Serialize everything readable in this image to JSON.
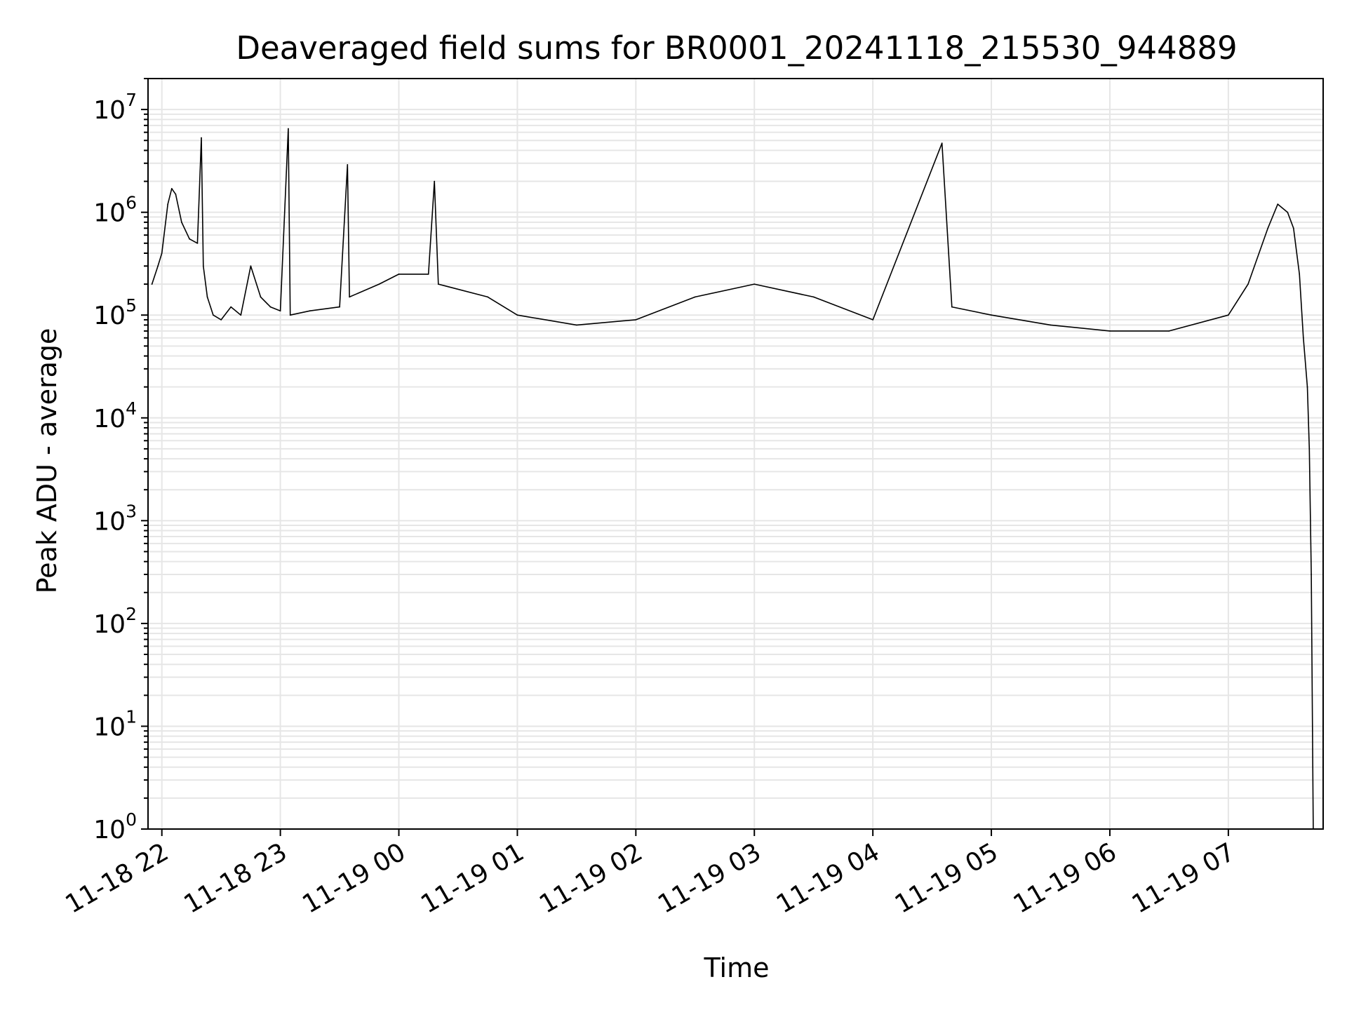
{
  "chart_data": {
    "type": "line",
    "title": "Deaveraged field sums for BR0001_20241118_215530_944889",
    "xlabel": "Time",
    "ylabel": "Peak ADU - average",
    "yscale": "log",
    "ylim": [
      1,
      20000000
    ],
    "xlim": [
      "2024-11-18 21:53",
      "2024-11-19 07:48"
    ],
    "grid": "on (major and minor)",
    "line_color": "#000000",
    "grid_color": "#e6e6e6",
    "x_ticks": [
      "11-18 22",
      "11-18 23",
      "11-19 00",
      "11-19 01",
      "11-19 02",
      "11-19 03",
      "11-19 04",
      "11-19 05",
      "11-19 06",
      "11-19 07"
    ],
    "x_tick_times": [
      "2024-11-18 22:00",
      "2024-11-18 23:00",
      "2024-11-19 00:00",
      "2024-11-19 01:00",
      "2024-11-19 02:00",
      "2024-11-19 03:00",
      "2024-11-19 04:00",
      "2024-11-19 05:00",
      "2024-11-19 06:00",
      "2024-11-19 07:00"
    ],
    "y_ticks": [
      {
        "base": "10",
        "exp": "0",
        "value": 1
      },
      {
        "base": "10",
        "exp": "1",
        "value": 10
      },
      {
        "base": "10",
        "exp": "2",
        "value": 100
      },
      {
        "base": "10",
        "exp": "3",
        "value": 1000
      },
      {
        "base": "10",
        "exp": "4",
        "value": 10000
      },
      {
        "base": "10",
        "exp": "5",
        "value": 100000
      },
      {
        "base": "10",
        "exp": "6",
        "value": 1000000
      },
      {
        "base": "10",
        "exp": "7",
        "value": 10000000
      }
    ],
    "series": [
      {
        "points": [
          [
            "2024-11-18 21:55",
            200000
          ],
          [
            "2024-11-18 21:58",
            300000
          ],
          [
            "2024-11-18 22:00",
            400000
          ],
          [
            "2024-11-18 22:03",
            1200000
          ],
          [
            "2024-11-18 22:05",
            1700000
          ],
          [
            "2024-11-18 22:07",
            1500000
          ],
          [
            "2024-11-18 22:10",
            800000
          ],
          [
            "2024-11-18 22:14",
            550000
          ],
          [
            "2024-11-18 22:18",
            500000
          ],
          [
            "2024-11-18 22:20",
            5300000
          ],
          [
            "2024-11-18 22:21",
            300000
          ],
          [
            "2024-11-18 22:23",
            150000
          ],
          [
            "2024-11-18 22:26",
            100000
          ],
          [
            "2024-11-18 22:30",
            90000
          ],
          [
            "2024-11-18 22:35",
            120000
          ],
          [
            "2024-11-18 22:40",
            100000
          ],
          [
            "2024-11-18 22:45",
            300000
          ],
          [
            "2024-11-18 22:50",
            150000
          ],
          [
            "2024-11-18 22:55",
            120000
          ],
          [
            "2024-11-18 23:00",
            110000
          ],
          [
            "2024-11-18 23:04",
            6500000
          ],
          [
            "2024-11-18 23:05",
            100000
          ],
          [
            "2024-11-18 23:15",
            110000
          ],
          [
            "2024-11-18 23:30",
            120000
          ],
          [
            "2024-11-18 23:34",
            2900000
          ],
          [
            "2024-11-18 23:35",
            150000
          ],
          [
            "2024-11-18 23:50",
            200000
          ],
          [
            "2024-11-19 00:00",
            250000
          ],
          [
            "2024-11-19 00:15",
            250000
          ],
          [
            "2024-11-19 00:18",
            2000000
          ],
          [
            "2024-11-19 00:20",
            200000
          ],
          [
            "2024-11-19 00:45",
            150000
          ],
          [
            "2024-11-19 01:00",
            100000
          ],
          [
            "2024-11-19 01:30",
            80000
          ],
          [
            "2024-11-19 02:00",
            90000
          ],
          [
            "2024-11-19 02:30",
            150000
          ],
          [
            "2024-11-19 03:00",
            200000
          ],
          [
            "2024-11-19 03:30",
            150000
          ],
          [
            "2024-11-19 04:00",
            90000
          ],
          [
            "2024-11-19 04:35",
            4700000
          ],
          [
            "2024-11-19 04:40",
            120000
          ],
          [
            "2024-11-19 05:00",
            100000
          ],
          [
            "2024-11-19 05:30",
            80000
          ],
          [
            "2024-11-19 06:00",
            70000
          ],
          [
            "2024-11-19 06:30",
            70000
          ],
          [
            "2024-11-19 07:00",
            100000
          ],
          [
            "2024-11-19 07:10",
            200000
          ],
          [
            "2024-11-19 07:20",
            700000
          ],
          [
            "2024-11-19 07:25",
            1200000
          ],
          [
            "2024-11-19 07:30",
            1000000
          ],
          [
            "2024-11-19 07:33",
            700000
          ],
          [
            "2024-11-19 07:36",
            250000
          ],
          [
            "2024-11-19 07:38",
            60000
          ],
          [
            "2024-11-19 07:40",
            20000
          ],
          [
            "2024-11-19 07:41",
            5000
          ],
          [
            "2024-11-19 07:42",
            300
          ],
          [
            "2024-11-19 07:43",
            1
          ]
        ]
      }
    ]
  }
}
